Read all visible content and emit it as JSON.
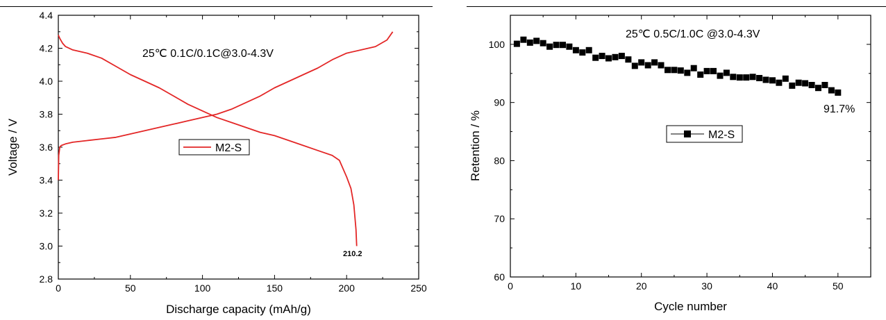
{
  "colors": {
    "curve": "#e32626",
    "marker": "#000000",
    "axis": "#000000"
  },
  "chart_data": [
    {
      "type": "line",
      "xlabel": "Discharge capacity (mAh/g)",
      "ylabel": "Voltage / V",
      "xlim": [
        0,
        250
      ],
      "ylim": [
        2.8,
        4.4
      ],
      "xticks": [
        "0",
        "50",
        "100",
        "150",
        "200",
        "250"
      ],
      "yticks": [
        "2.8",
        "3.0",
        "3.2",
        "3.4",
        "3.6",
        "3.8",
        "4.0",
        "4.2",
        "4.4"
      ],
      "annotation": "25℃ 0.1C/0.1C@3.0-4.3V",
      "end_label": "210.2",
      "legend": {
        "label": "M2-S",
        "position": "center-left"
      },
      "series": [
        {
          "name": "M2-S",
          "segment": "charge",
          "x": [
            0,
            0.3,
            1,
            2,
            5,
            10,
            20,
            30,
            40,
            50,
            60,
            70,
            80,
            90,
            100,
            110,
            120,
            130,
            140,
            150,
            160,
            170,
            180,
            190,
            200,
            210,
            220,
            228,
            232
          ],
          "y": [
            3.4,
            3.55,
            3.6,
            3.61,
            3.62,
            3.63,
            3.64,
            3.65,
            3.66,
            3.68,
            3.7,
            3.72,
            3.74,
            3.76,
            3.78,
            3.8,
            3.83,
            3.87,
            3.91,
            3.96,
            4.0,
            4.04,
            4.08,
            4.13,
            4.17,
            4.19,
            4.21,
            4.25,
            4.3
          ]
        },
        {
          "name": "M2-S",
          "segment": "discharge",
          "x": [
            0,
            1,
            3,
            5,
            10,
            20,
            30,
            40,
            50,
            60,
            70,
            80,
            90,
            100,
            110,
            120,
            130,
            140,
            150,
            160,
            170,
            180,
            190,
            195,
            200,
            203,
            205,
            206.5,
            207
          ],
          "y": [
            4.28,
            4.26,
            4.23,
            4.21,
            4.19,
            4.17,
            4.14,
            4.09,
            4.04,
            4.0,
            3.96,
            3.91,
            3.86,
            3.82,
            3.78,
            3.75,
            3.72,
            3.69,
            3.67,
            3.64,
            3.61,
            3.58,
            3.55,
            3.52,
            3.42,
            3.35,
            3.25,
            3.1,
            3.0
          ]
        }
      ]
    },
    {
      "type": "scatter",
      "xlabel": "Cycle number",
      "ylabel": "Retention / %",
      "xlim": [
        0,
        55
      ],
      "ylim": [
        60,
        105
      ],
      "xticks": [
        "0",
        "10",
        "20",
        "30",
        "40",
        "50"
      ],
      "yticks": [
        "60",
        "70",
        "80",
        "90",
        "100"
      ],
      "annotation": "25℃ 0.5C/1.0C @3.0-4.3V",
      "end_label": "91.7%",
      "legend": {
        "label": "M2-S",
        "position": "upper-center"
      },
      "series": [
        {
          "name": "M2-S",
          "x": [
            1,
            2,
            3,
            4,
            5,
            6,
            7,
            8,
            9,
            10,
            11,
            12,
            13,
            14,
            15,
            16,
            17,
            18,
            19,
            20,
            21,
            22,
            23,
            24,
            25,
            26,
            27,
            28,
            29,
            30,
            31,
            32,
            33,
            34,
            35,
            36,
            37,
            38,
            39,
            40,
            41,
            42,
            43,
            44,
            45,
            46,
            47,
            48,
            49,
            50
          ],
          "y": [
            100.1,
            100.8,
            100.3,
            100.6,
            100.2,
            99.6,
            99.9,
            99.9,
            99.6,
            99.0,
            98.6,
            99.0,
            97.7,
            98.0,
            97.6,
            97.8,
            98.0,
            97.4,
            96.3,
            96.9,
            96.4,
            96.9,
            96.4,
            95.6,
            95.6,
            95.5,
            95.1,
            95.9,
            94.8,
            95.4,
            95.4,
            94.6,
            95.1,
            94.4,
            94.3,
            94.3,
            94.4,
            94.2,
            93.9,
            93.8,
            93.4,
            94.1,
            92.9,
            93.4,
            93.3,
            93.0,
            92.5,
            93.0,
            92.1,
            91.7
          ]
        }
      ]
    }
  ]
}
